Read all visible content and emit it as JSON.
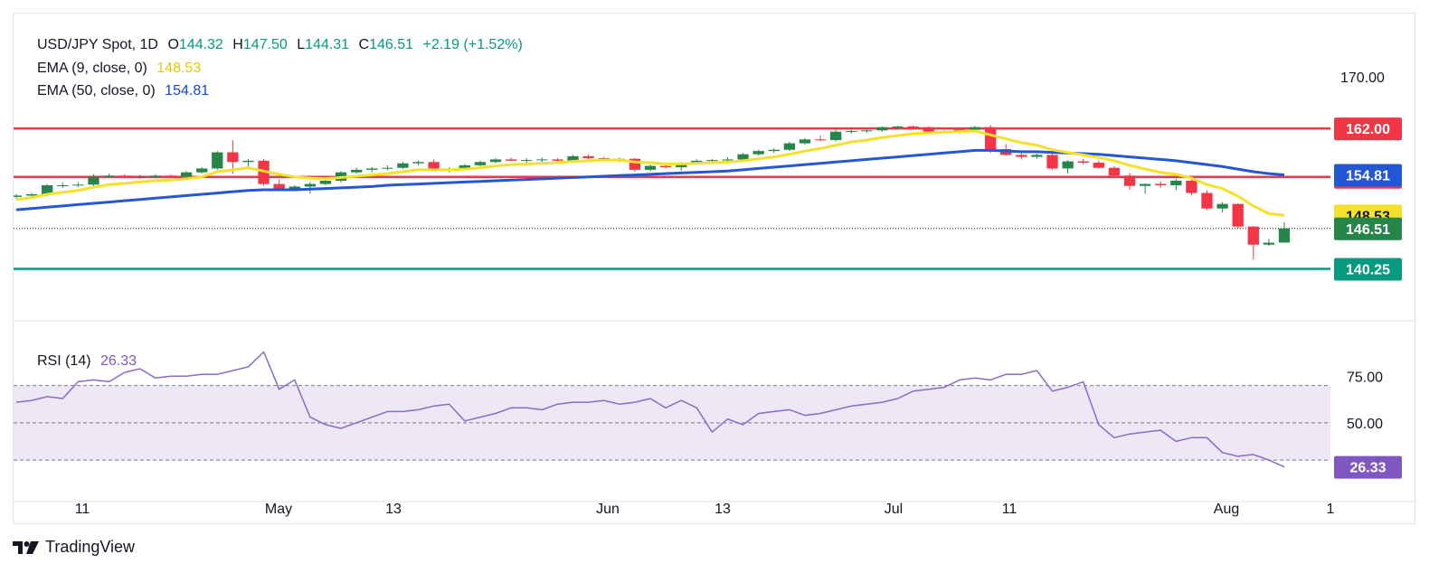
{
  "legend": {
    "symbol": "USD/JPY Spot, 1D",
    "o_label": "O",
    "o_value": "144.32",
    "h_label": "H",
    "h_value": "147.50",
    "l_label": "L",
    "l_value": "144.31",
    "c_label": "C",
    "c_value": "146.51",
    "change": "+2.19 (+1.52%)",
    "ema9_label": "EMA (9, close, 0)",
    "ema9_value": "148.53",
    "ema50_label": "EMA (50, close, 0)",
    "ema50_value": "154.81",
    "rsi_label": "RSI (14)",
    "rsi_value": "26.33"
  },
  "brand": {
    "name": "TradingView"
  },
  "colors": {
    "up": "#26864a",
    "down": "#f23645",
    "ema9": "#f5e12b",
    "ema50": "#2457d6",
    "level_red": "#f23645",
    "level_green": "#089981",
    "rsi": "#8c6bc8",
    "rsi_band": "#ede7f6"
  },
  "chart_data": [
    {
      "type": "candlestick",
      "title": "USD/JPY Spot, 1D",
      "ylim": [
        135,
        177
      ],
      "price_axis_ticks": [
        "170.00"
      ],
      "x_ticks": [
        "11",
        "May",
        "13",
        "Jun",
        "13",
        "Jul",
        "11",
        "Aug",
        "1"
      ],
      "levels": [
        {
          "value": 162.0,
          "label": "162.00",
          "color": "red"
        },
        {
          "value": 154.5,
          "label": "154.50",
          "color": "red"
        },
        {
          "value": 140.25,
          "label": "140.25",
          "color": "green"
        }
      ],
      "price_tags": [
        {
          "label": "154.81",
          "value": 154.81,
          "series": "EMA 50"
        },
        {
          "label": "148.53",
          "value": 148.53,
          "series": "EMA 9"
        },
        {
          "label": "146.51",
          "value": 146.51,
          "series": "Last"
        }
      ],
      "candles": [
        [
          151.4,
          151.8,
          151.1,
          151.6
        ],
        [
          151.6,
          152.0,
          151.3,
          151.8
        ],
        [
          151.8,
          153.4,
          151.5,
          153.2
        ],
        [
          153.2,
          153.6,
          152.8,
          153.2
        ],
        [
          153.2,
          153.7,
          152.9,
          153.3
        ],
        [
          153.3,
          154.9,
          153.0,
          154.6
        ],
        [
          154.6,
          155.0,
          154.3,
          154.7
        ],
        [
          154.7,
          154.9,
          154.3,
          154.5
        ],
        [
          154.5,
          154.8,
          154.2,
          154.6
        ],
        [
          154.6,
          154.9,
          154.3,
          154.7
        ],
        [
          154.7,
          154.9,
          154.4,
          154.6
        ],
        [
          154.6,
          155.4,
          154.4,
          155.2
        ],
        [
          155.2,
          156.0,
          155.0,
          155.8
        ],
        [
          155.8,
          158.5,
          155.6,
          158.3
        ],
        [
          158.3,
          160.2,
          155.0,
          156.8
        ],
        [
          156.8,
          157.3,
          155.8,
          157.0
        ],
        [
          157.0,
          157.3,
          153.1,
          153.4
        ],
        [
          153.4,
          154.1,
          152.6,
          152.6
        ],
        [
          152.6,
          153.2,
          152.3,
          153.0
        ],
        [
          153.0,
          153.7,
          151.9,
          153.4
        ],
        [
          153.4,
          154.0,
          153.2,
          153.9
        ],
        [
          153.9,
          155.4,
          153.6,
          155.2
        ],
        [
          155.2,
          155.9,
          155.0,
          155.6
        ],
        [
          155.6,
          156.0,
          155.2,
          155.8
        ],
        [
          155.8,
          156.3,
          155.5,
          155.9
        ],
        [
          155.9,
          156.8,
          155.7,
          156.6
        ],
        [
          156.6,
          157.0,
          156.3,
          156.8
        ],
        [
          156.8,
          157.2,
          155.4,
          155.5
        ],
        [
          155.5,
          156.0,
          155.2,
          155.7
        ],
        [
          155.7,
          156.5,
          155.5,
          156.3
        ],
        [
          156.3,
          157.0,
          156.1,
          156.8
        ],
        [
          156.8,
          157.4,
          156.6,
          157.2
        ],
        [
          157.2,
          157.5,
          156.9,
          157.0
        ],
        [
          157.0,
          157.4,
          156.7,
          157.1
        ],
        [
          157.1,
          157.5,
          156.8,
          157.2
        ],
        [
          157.2,
          157.4,
          156.8,
          157.0
        ],
        [
          157.0,
          157.9,
          156.8,
          157.7
        ],
        [
          157.7,
          158.0,
          157.2,
          157.4
        ],
        [
          157.4,
          157.6,
          157.0,
          157.2
        ],
        [
          157.2,
          157.5,
          156.8,
          157.3
        ],
        [
          157.3,
          157.4,
          155.3,
          155.6
        ],
        [
          155.6,
          156.4,
          155.4,
          156.2
        ],
        [
          156.2,
          156.6,
          155.8,
          156.0
        ],
        [
          156.0,
          156.8,
          155.4,
          156.7
        ],
        [
          156.7,
          157.2,
          156.5,
          157.0
        ],
        [
          157.0,
          157.3,
          156.8,
          157.1
        ],
        [
          157.1,
          157.5,
          156.9,
          157.2
        ],
        [
          157.2,
          158.2,
          157.0,
          158.0
        ],
        [
          158.0,
          158.7,
          157.8,
          158.5
        ],
        [
          158.5,
          158.9,
          158.2,
          158.7
        ],
        [
          158.7,
          159.9,
          158.5,
          159.7
        ],
        [
          159.7,
          160.5,
          159.5,
          160.3
        ],
        [
          160.3,
          160.9,
          160.0,
          160.2
        ],
        [
          160.2,
          161.8,
          160.0,
          161.5
        ],
        [
          161.5,
          161.8,
          161.2,
          161.6
        ],
        [
          161.6,
          161.8,
          161.3,
          161.7
        ],
        [
          161.7,
          162.3,
          161.5,
          162.2
        ],
        [
          162.2,
          162.4,
          161.9,
          162.3
        ],
        [
          162.3,
          162.5,
          161.9,
          162.2
        ],
        [
          162.2,
          162.3,
          161.4,
          161.5
        ],
        [
          161.5,
          161.7,
          161.3,
          161.5
        ],
        [
          161.5,
          161.9,
          161.2,
          161.8
        ],
        [
          161.8,
          162.4,
          161.5,
          162.2
        ],
        [
          162.2,
          162.5,
          158.2,
          158.8
        ],
        [
          158.8,
          159.6,
          157.8,
          157.9
        ],
        [
          157.9,
          158.3,
          157.2,
          157.6
        ],
        [
          157.6,
          158.1,
          157.3,
          157.9
        ],
        [
          157.9,
          158.9,
          155.6,
          155.8
        ],
        [
          155.8,
          157.1,
          155.0,
          156.9
        ],
        [
          156.9,
          157.3,
          156.4,
          156.7
        ],
        [
          156.7,
          157.0,
          155.8,
          155.9
        ],
        [
          155.9,
          156.2,
          154.5,
          154.7
        ],
        [
          154.7,
          155.1,
          152.5,
          153.1
        ],
        [
          153.1,
          153.5,
          151.9,
          153.4
        ],
        [
          153.4,
          153.8,
          152.8,
          153.2
        ],
        [
          153.2,
          154.2,
          152.4,
          153.9
        ],
        [
          153.9,
          154.2,
          151.6,
          152.0
        ],
        [
          152.0,
          152.4,
          149.3,
          149.6
        ],
        [
          149.6,
          150.6,
          149.0,
          150.3
        ],
        [
          150.3,
          150.4,
          146.4,
          146.8
        ],
        [
          146.8,
          146.9,
          141.7,
          144.0
        ],
        [
          144.0,
          144.9,
          143.8,
          144.3
        ],
        [
          144.32,
          147.5,
          144.31,
          146.51
        ]
      ],
      "ema9": [
        151.0,
        151.3,
        151.8,
        152.1,
        152.4,
        152.9,
        153.3,
        153.5,
        153.7,
        153.9,
        154.0,
        154.2,
        154.5,
        155.3,
        155.6,
        155.9,
        155.4,
        154.9,
        154.5,
        154.3,
        154.2,
        154.4,
        154.6,
        154.8,
        155.0,
        155.3,
        155.6,
        155.6,
        155.6,
        155.7,
        155.9,
        156.2,
        156.4,
        156.5,
        156.6,
        156.7,
        156.9,
        157.0,
        157.1,
        157.1,
        156.8,
        156.7,
        156.5,
        156.5,
        156.6,
        156.7,
        156.8,
        157.0,
        157.3,
        157.6,
        158.0,
        158.5,
        158.9,
        159.4,
        159.9,
        160.2,
        160.6,
        160.9,
        161.2,
        161.3,
        161.4,
        161.5,
        161.6,
        161.0,
        160.4,
        159.8,
        159.4,
        158.7,
        158.3,
        157.9,
        157.5,
        157.0,
        156.3,
        155.7,
        155.2,
        154.9,
        154.3,
        153.3,
        152.7,
        151.5,
        150.0,
        148.8,
        148.53
      ],
      "ema50": [
        149.4,
        149.6,
        149.8,
        150.0,
        150.2,
        150.4,
        150.6,
        150.8,
        151.0,
        151.2,
        151.4,
        151.6,
        151.8,
        152.0,
        152.2,
        152.4,
        152.5,
        152.5,
        152.5,
        152.6,
        152.7,
        152.8,
        152.9,
        153.0,
        153.2,
        153.3,
        153.4,
        153.5,
        153.6,
        153.7,
        153.8,
        153.9,
        154.0,
        154.1,
        154.2,
        154.3,
        154.4,
        154.5,
        154.6,
        154.7,
        154.8,
        154.9,
        155.0,
        155.1,
        155.2,
        155.3,
        155.4,
        155.6,
        155.8,
        156.0,
        156.2,
        156.4,
        156.6,
        156.8,
        157.0,
        157.2,
        157.4,
        157.6,
        157.8,
        158.0,
        158.2,
        158.4,
        158.6,
        158.6,
        158.5,
        158.4,
        158.4,
        158.3,
        158.2,
        158.1,
        158.0,
        157.8,
        157.6,
        157.4,
        157.2,
        157.0,
        156.7,
        156.4,
        156.1,
        155.7,
        155.3,
        155.0,
        154.81
      ]
    },
    {
      "type": "line",
      "title": "RSI (14)",
      "ylim": [
        15,
        95
      ],
      "y_ticks": [
        "75.00",
        "50.00"
      ],
      "band": [
        30,
        70
      ],
      "midline": 50,
      "last_label": "26.33",
      "values": [
        61,
        62,
        64,
        63,
        72,
        73,
        72,
        77,
        79,
        74,
        75,
        75,
        76,
        76,
        78,
        80,
        88,
        68,
        73,
        53,
        49,
        47,
        50,
        53,
        56,
        56,
        57,
        59,
        60,
        51,
        53,
        55,
        58,
        58,
        57,
        60,
        61,
        61,
        62,
        60,
        61,
        63,
        58,
        62,
        58,
        45,
        52,
        49,
        55,
        56,
        57,
        54,
        55,
        57,
        59,
        60,
        61,
        63,
        67,
        68,
        69,
        73,
        74,
        73,
        76,
        76,
        78,
        67,
        69,
        72,
        49,
        42,
        44,
        45,
        46,
        40,
        42,
        42,
        34,
        32,
        33,
        30,
        26.33
      ]
    }
  ]
}
